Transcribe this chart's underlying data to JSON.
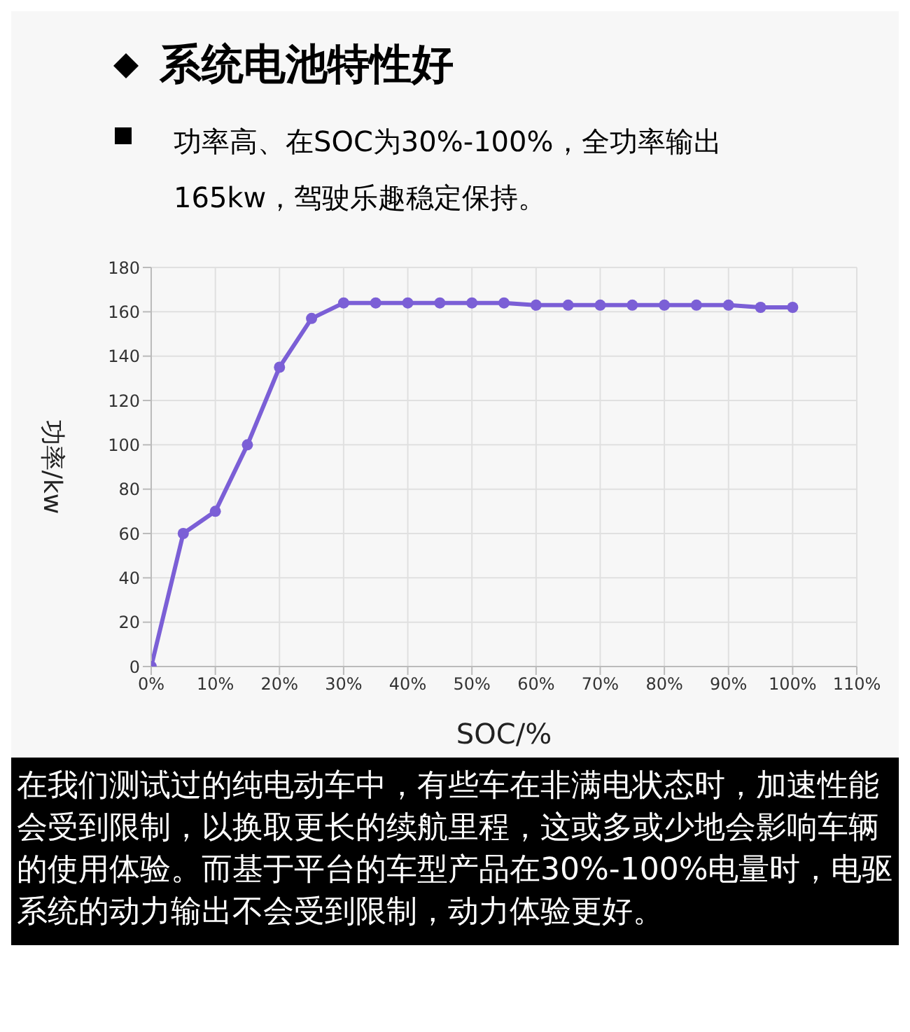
{
  "chart_data": {
    "type": "line",
    "title": "系统电池特性好",
    "subtitle": "功率高、在SOC为30%-100%，全功率输出165kw，驾驶乐趣稳定保持。",
    "xlabel": "SOC/%",
    "ylabel": "功率/kw",
    "x": [
      0,
      5,
      10,
      15,
      20,
      25,
      30,
      35,
      40,
      45,
      50,
      55,
      60,
      65,
      70,
      75,
      80,
      85,
      90,
      95,
      100
    ],
    "series": [
      {
        "color": "#7b5fd6",
        "values": [
          0,
          60,
          70,
          100,
          135,
          157,
          164,
          164,
          164,
          164,
          164,
          164,
          163,
          163,
          163,
          163,
          163,
          163,
          163,
          162,
          162
        ]
      }
    ],
    "xlim": [
      0,
      110
    ],
    "xticks": [
      {
        "value": 0,
        "label": "0%"
      },
      {
        "value": 10,
        "label": "10%"
      },
      {
        "value": 20,
        "label": "20%"
      },
      {
        "value": 30,
        "label": "30%"
      },
      {
        "value": 40,
        "label": "40%"
      },
      {
        "value": 50,
        "label": "50%"
      },
      {
        "value": 60,
        "label": "60%"
      },
      {
        "value": 70,
        "label": "70%"
      },
      {
        "value": 80,
        "label": "80%"
      },
      {
        "value": 90,
        "label": "90%"
      },
      {
        "value": 100,
        "label": "100%"
      },
      {
        "value": 110,
        "label": "110%"
      }
    ],
    "ylim": [
      0,
      180
    ],
    "yticks": [
      0,
      20,
      40,
      60,
      80,
      100,
      120,
      140,
      160,
      180
    ],
    "grid": true,
    "legend": false,
    "marker": "circle",
    "line_style": "solid",
    "annotations": [
      "在我们测试过的纯电动车中，有些车在非满电状态时，加速性能会受到限制，以换取更长的续航里程，这或多或少地会影响车辆的使用体验。而基于平台的车型产品在30%-100%电量时，电驱系统的动力输出不会受到限制，动力体验更好。"
    ]
  }
}
